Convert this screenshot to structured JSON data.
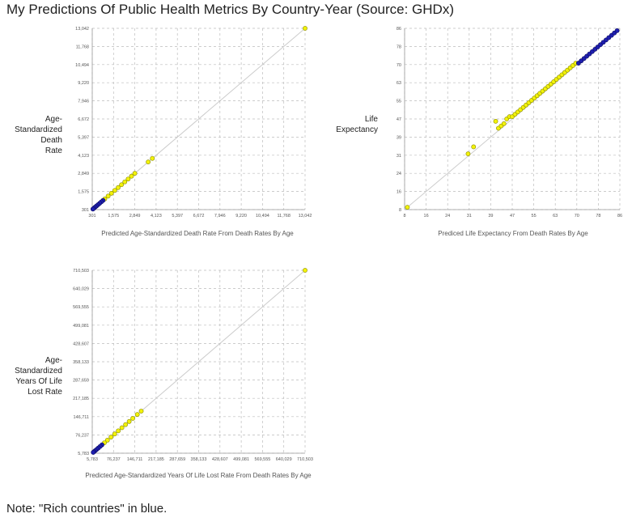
{
  "title": "My Predictions Of Public Health Metrics By Country-Year (Source: GHDx)",
  "note": "Note: \"Rich countries\" in blue.",
  "colors": {
    "rich": "#1f1fb0",
    "other": "#f2f20a",
    "rich_stroke": "#0a0a60",
    "other_stroke": "#8a8a00",
    "diagonal": "#cccccc",
    "grid": "#bcbcbc"
  },
  "chart_data": [
    {
      "type": "scatter",
      "ylabel_lines": [
        "Age-",
        "Standardized",
        "Death",
        "Rate"
      ],
      "xlabel": "Predicted Age-Standardized Death Rate From Death Rates By Age",
      "ticks": [
        "301",
        "1,575",
        "2,849",
        "4,123",
        "5,397",
        "6,672",
        "7,946",
        "9,220",
        "10,494",
        "11,768",
        "13,042"
      ],
      "xlim": [
        301,
        13042
      ],
      "ylim": [
        301,
        13042
      ],
      "series": [
        {
          "group": "other",
          "points": [
            [
              13042,
              13042
            ],
            [
              3900,
              3900
            ],
            [
              3650,
              3650
            ],
            [
              2849,
              2849
            ],
            [
              2650,
              2650
            ],
            [
              2450,
              2450
            ],
            [
              2250,
              2250
            ],
            [
              2050,
              2050
            ],
            [
              1850,
              1850
            ],
            [
              1650,
              1650
            ],
            [
              1450,
              1450
            ],
            [
              1250,
              1250
            ],
            [
              1050,
              1050
            ]
          ]
        },
        {
          "group": "rich",
          "points": [
            [
              950,
              950
            ],
            [
              850,
              850
            ],
            [
              750,
              750
            ],
            [
              650,
              650
            ],
            [
              560,
              560
            ],
            [
              480,
              480
            ],
            [
              400,
              400
            ],
            [
              340,
              340
            ]
          ]
        }
      ]
    },
    {
      "type": "scatter",
      "ylabel_lines": [
        "Life",
        "Expectancy"
      ],
      "xlabel": "Prediced Life Expectancy From Death Rates By Age",
      "ticks": [
        "8",
        "16",
        "24",
        "31",
        "39",
        "47",
        "55",
        "63",
        "70",
        "78",
        "86"
      ],
      "xlim": [
        8,
        86
      ],
      "ylim": [
        8,
        86
      ],
      "series": [
        {
          "group": "other",
          "points": [
            [
              9,
              9
            ],
            [
              31,
              32
            ],
            [
              33,
              35
            ],
            [
              41,
              46
            ],
            [
              42,
              43
            ],
            [
              43,
              44
            ],
            [
              44,
              45
            ],
            [
              45,
              47
            ],
            [
              46,
              48
            ],
            [
              47,
              48
            ],
            [
              48,
              49
            ],
            [
              49,
              50
            ],
            [
              50,
              51
            ],
            [
              51,
              52
            ],
            [
              52,
              53
            ],
            [
              53,
              54
            ],
            [
              54,
              55
            ],
            [
              55,
              56
            ],
            [
              56,
              57
            ],
            [
              57,
              58
            ],
            [
              58,
              59
            ],
            [
              59,
              60
            ],
            [
              60,
              61
            ],
            [
              61,
              62
            ],
            [
              62,
              63
            ],
            [
              63,
              64
            ],
            [
              64,
              65
            ],
            [
              65,
              66
            ],
            [
              66,
              67
            ],
            [
              67,
              68
            ],
            [
              68,
              69
            ],
            [
              69,
              70
            ],
            [
              70,
              71
            ]
          ]
        },
        {
          "group": "rich",
          "points": [
            [
              71,
              71
            ],
            [
              72,
              72
            ],
            [
              73,
              73
            ],
            [
              74,
              74
            ],
            [
              75,
              75
            ],
            [
              76,
              76
            ],
            [
              77,
              77
            ],
            [
              78,
              78
            ],
            [
              79,
              79
            ],
            [
              80,
              80
            ],
            [
              81,
              81
            ],
            [
              82,
              82
            ],
            [
              83,
              83
            ],
            [
              84,
              84
            ],
            [
              85,
              85
            ]
          ]
        }
      ]
    },
    {
      "type": "scatter",
      "ylabel_lines": [
        "Age-",
        "Standardized",
        "Years Of Life",
        "Lost Rate"
      ],
      "xlabel": "Predicted Age-Standardized Years Of Life Lost Rate From Death Rates By Age",
      "ticks": [
        "5,783",
        "76,237",
        "146,711",
        "217,185",
        "287,659",
        "358,133",
        "428,607",
        "499,081",
        "569,555",
        "640,029",
        "710,503"
      ],
      "xlim": [
        5783,
        710503
      ],
      "ylim": [
        5783,
        710503
      ],
      "series": [
        {
          "group": "other",
          "points": [
            [
              710503,
              710503
            ],
            [
              168000,
              168000
            ],
            [
              155000,
              155000
            ],
            [
              140000,
              140000
            ],
            [
              128000,
              128000
            ],
            [
              116000,
              116000
            ],
            [
              104000,
              104000
            ],
            [
              92000,
              92000
            ],
            [
              80000,
              80000
            ],
            [
              68000,
              68000
            ],
            [
              56000,
              56000
            ],
            [
              46000,
              46000
            ]
          ]
        },
        {
          "group": "rich",
          "points": [
            [
              38000,
              38000
            ],
            [
              32000,
              32000
            ],
            [
              26000,
              26000
            ],
            [
              21000,
              21000
            ],
            [
              16000,
              16000
            ],
            [
              12000,
              12000
            ],
            [
              9000,
              9000
            ]
          ]
        }
      ]
    }
  ]
}
